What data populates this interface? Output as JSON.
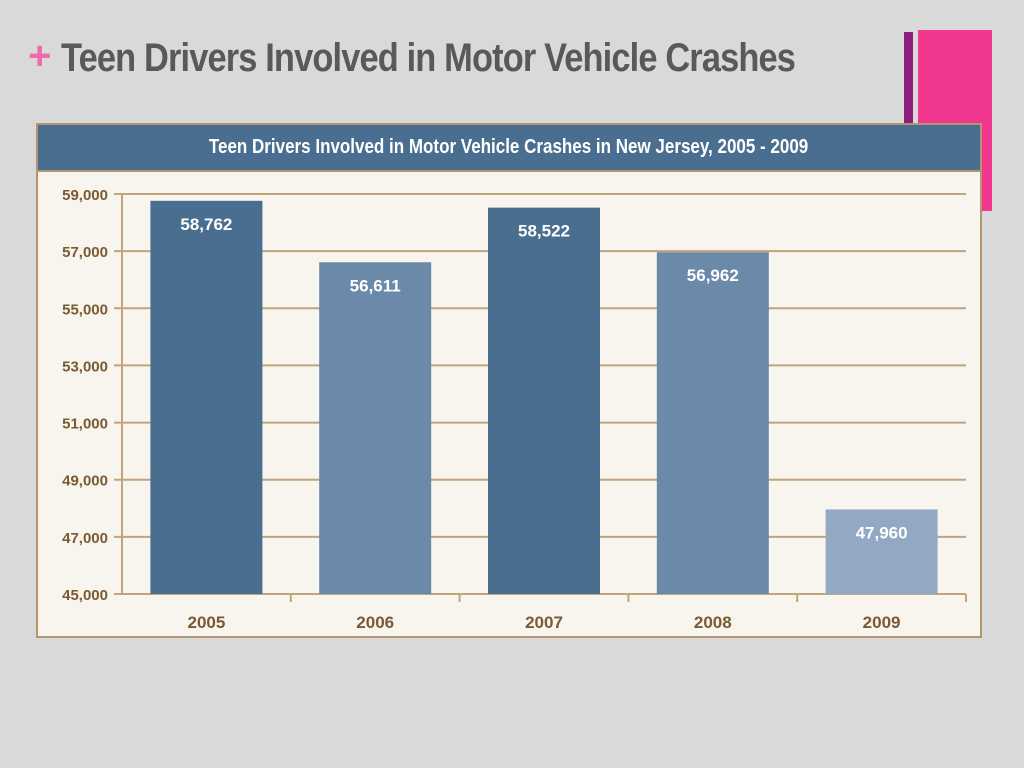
{
  "slide": {
    "bullet": "+",
    "title": "Teen Drivers Involved in Motor Vehicle Crashes"
  },
  "chart_data": {
    "type": "bar",
    "title": "Teen Drivers Involved in Motor Vehicle Crashes in New Jersey, 2005 - 2009",
    "xlabel": "",
    "ylabel": "",
    "categories": [
      "2005",
      "2006",
      "2007",
      "2008",
      "2009"
    ],
    "values": [
      58762,
      56611,
      58522,
      56962,
      47960
    ],
    "value_labels": [
      "58,762",
      "56,611",
      "58,522",
      "56,962",
      "47,960"
    ],
    "ylim": [
      45000,
      59000
    ],
    "yticks": [
      45000,
      47000,
      49000,
      51000,
      53000,
      55000,
      57000,
      59000
    ],
    "ytick_labels": [
      "45,000",
      "47,000",
      "49,000",
      "51,000",
      "53,000",
      "55,000",
      "57,000",
      "59,000"
    ],
    "grid": true,
    "legend": "none",
    "bar_colors": [
      "#4a6e8f",
      "#6b89a8",
      "#4a6e8f",
      "#6b89a8",
      "#93a9c3"
    ]
  },
  "colors": {
    "header": "#4a6e8f",
    "gridline": "#c0a47c",
    "axis_text": "#7a5a32",
    "plot_bg": "#f8f5ee",
    "accent_pink": "#f2378f",
    "accent_purple": "#8e1e7e"
  }
}
